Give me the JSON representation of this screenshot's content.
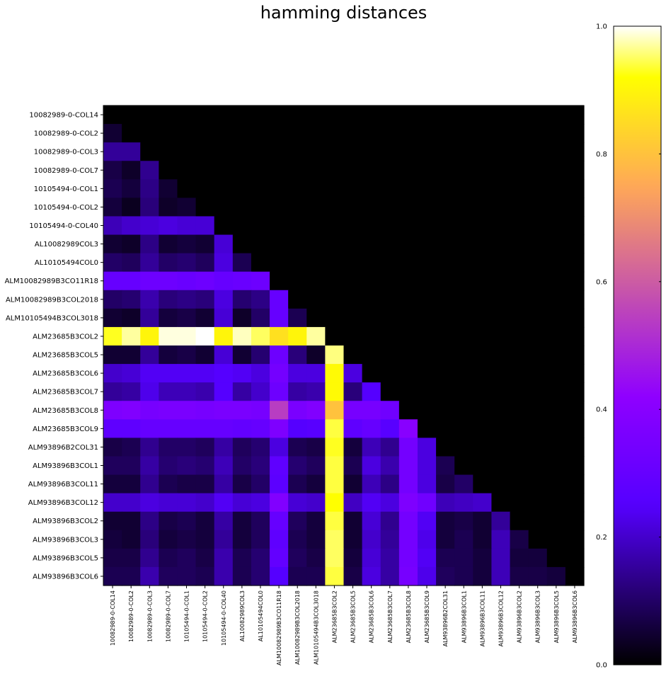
{
  "chart_data": {
    "type": "heatmap",
    "title": "hamming distances",
    "colormap": "gnuplot2",
    "labels": [
      "10082989-0-COL14",
      "10082989-0-COL2",
      "10082989-0-COL3",
      "10082989-0-COL7",
      "10105494-0-COL1",
      "10105494-0-COL2",
      "10105494-0-COL40",
      "AL10082989COL3",
      "AL10105494COL0",
      "ALM10082989B3CO11R18",
      "ALM10082989B3COL2018",
      "ALM10105494B3COL3018",
      "ALM23685B3COL2",
      "ALM23685B3COL5",
      "ALM23685B3COL6",
      "ALM23685B3COL7",
      "ALM23685B3COL8",
      "ALM23685B3COL9",
      "ALM93896B2COL31",
      "ALM93896B3COL1",
      "ALM93896B3COL11",
      "ALM93896B3COL12",
      "ALM93896B3COL2",
      "ALM93896B3COL3",
      "ALM93896B3COL5",
      "ALM93896B3COL6"
    ],
    "matrix": [
      [],
      [
        0.05
      ],
      [
        0.15,
        0.15
      ],
      [
        0.07,
        0.04,
        0.14
      ],
      [
        0.08,
        0.06,
        0.13,
        0.05
      ],
      [
        0.06,
        0.03,
        0.12,
        0.04,
        0.05
      ],
      [
        0.18,
        0.2,
        0.21,
        0.22,
        0.21,
        0.21
      ],
      [
        0.05,
        0.04,
        0.13,
        0.05,
        0.06,
        0.05,
        0.21
      ],
      [
        0.1,
        0.09,
        0.15,
        0.1,
        0.11,
        0.09,
        0.22,
        0.08
      ],
      [
        0.3,
        0.3,
        0.32,
        0.32,
        0.31,
        0.32,
        0.3,
        0.31,
        0.32
      ],
      [
        0.1,
        0.11,
        0.17,
        0.12,
        0.13,
        0.12,
        0.22,
        0.11,
        0.13,
        0.3
      ],
      [
        0.05,
        0.04,
        0.15,
        0.06,
        0.07,
        0.05,
        0.21,
        0.04,
        0.1,
        0.3,
        0.08
      ],
      [
        0.93,
        0.97,
        0.9,
        0.99,
        0.99,
        1.0,
        0.9,
        0.98,
        0.95,
        0.86,
        0.9,
        0.97
      ],
      [
        0.05,
        0.05,
        0.15,
        0.06,
        0.07,
        0.05,
        0.21,
        0.05,
        0.11,
        0.32,
        0.12,
        0.04,
        0.96
      ],
      [
        0.2,
        0.21,
        0.24,
        0.24,
        0.24,
        0.24,
        0.25,
        0.24,
        0.22,
        0.34,
        0.22,
        0.22,
        0.91,
        0.22
      ],
      [
        0.15,
        0.16,
        0.23,
        0.18,
        0.18,
        0.17,
        0.25,
        0.16,
        0.2,
        0.32,
        0.16,
        0.17,
        0.91,
        0.12,
        0.25
      ],
      [
        0.37,
        0.38,
        0.35,
        0.36,
        0.36,
        0.35,
        0.36,
        0.36,
        0.35,
        0.54,
        0.36,
        0.38,
        0.8,
        0.35,
        0.35,
        0.33
      ],
      [
        0.28,
        0.28,
        0.3,
        0.3,
        0.3,
        0.3,
        0.3,
        0.29,
        0.3,
        0.37,
        0.25,
        0.26,
        0.94,
        0.28,
        0.3,
        0.26,
        0.4
      ],
      [
        0.07,
        0.08,
        0.14,
        0.1,
        0.1,
        0.09,
        0.16,
        0.09,
        0.11,
        0.22,
        0.08,
        0.07,
        0.93,
        0.06,
        0.18,
        0.14,
        0.34,
        0.22
      ],
      [
        0.09,
        0.09,
        0.16,
        0.11,
        0.12,
        0.11,
        0.18,
        0.1,
        0.12,
        0.28,
        0.11,
        0.09,
        0.94,
        0.08,
        0.22,
        0.17,
        0.34,
        0.22,
        0.08
      ],
      [
        0.06,
        0.06,
        0.14,
        0.08,
        0.07,
        0.07,
        0.16,
        0.07,
        0.1,
        0.27,
        0.08,
        0.06,
        0.94,
        0.05,
        0.18,
        0.13,
        0.34,
        0.22,
        0.07,
        0.1
      ],
      [
        0.2,
        0.2,
        0.22,
        0.21,
        0.21,
        0.2,
        0.24,
        0.21,
        0.22,
        0.38,
        0.21,
        0.2,
        0.92,
        0.19,
        0.24,
        0.22,
        0.37,
        0.33,
        0.18,
        0.19,
        0.2
      ],
      [
        0.05,
        0.05,
        0.13,
        0.07,
        0.08,
        0.06,
        0.16,
        0.06,
        0.09,
        0.3,
        0.09,
        0.06,
        0.94,
        0.05,
        0.21,
        0.14,
        0.34,
        0.24,
        0.06,
        0.07,
        0.05,
        0.15
      ],
      [
        0.06,
        0.05,
        0.12,
        0.06,
        0.07,
        0.06,
        0.15,
        0.06,
        0.09,
        0.28,
        0.08,
        0.06,
        0.95,
        0.05,
        0.2,
        0.15,
        0.34,
        0.23,
        0.06,
        0.08,
        0.05,
        0.18,
        0.07
      ],
      [
        0.07,
        0.07,
        0.14,
        0.08,
        0.09,
        0.07,
        0.17,
        0.08,
        0.11,
        0.29,
        0.09,
        0.07,
        0.95,
        0.06,
        0.21,
        0.16,
        0.34,
        0.24,
        0.08,
        0.08,
        0.06,
        0.18,
        0.06,
        0.06
      ],
      [
        0.08,
        0.08,
        0.17,
        0.09,
        0.09,
        0.08,
        0.17,
        0.08,
        0.11,
        0.25,
        0.08,
        0.08,
        0.94,
        0.07,
        0.22,
        0.16,
        0.35,
        0.23,
        0.09,
        0.08,
        0.06,
        0.18,
        0.07,
        0.07,
        0.06
      ]
    ],
    "colorbar": {
      "range": [
        0.0,
        1.0
      ],
      "ticks": [
        0.0,
        0.2,
        0.4,
        0.6,
        0.8,
        1.0
      ],
      "tick_labels": [
        "0.0",
        "0.2",
        "0.4",
        "0.6",
        "0.8",
        "1.0"
      ]
    },
    "grid": false
  }
}
